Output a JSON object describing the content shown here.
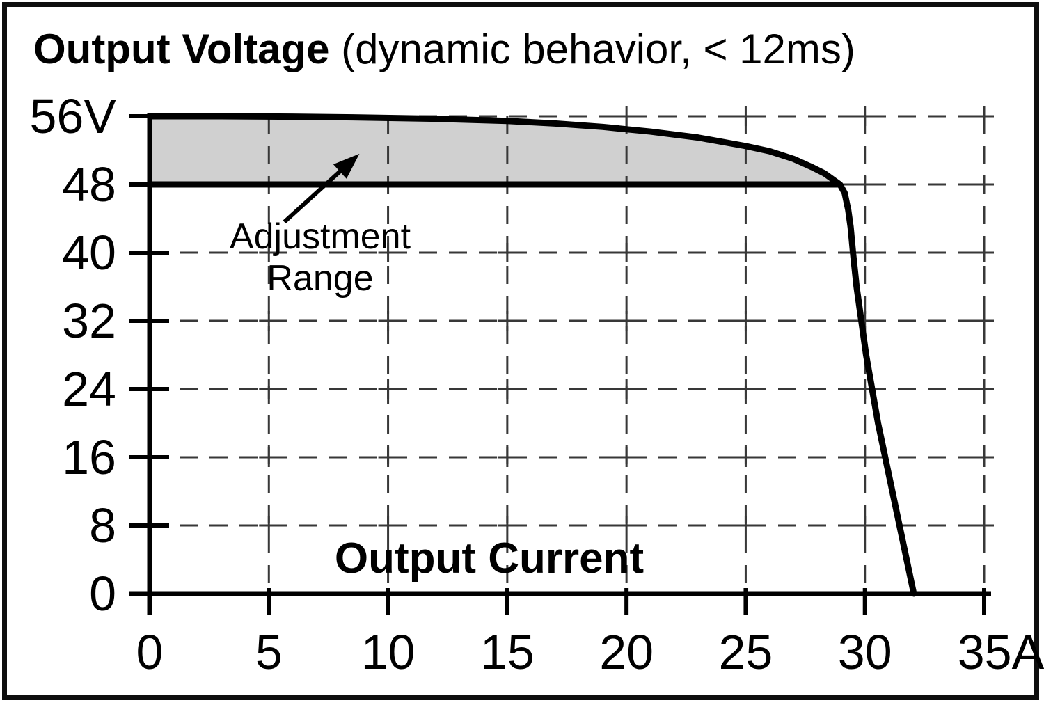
{
  "figure": {
    "title": {
      "bold": "Output Voltage",
      "regular": " (dynamic behavior, < 12ms)"
    }
  },
  "chart_data": {
    "type": "line",
    "title": "Output Voltage (dynamic behavior, < 12ms)",
    "xlabel": "Output Current",
    "ylabel": "Output Voltage",
    "x_unit": "A",
    "y_unit": "V",
    "xlim": [
      0,
      35
    ],
    "ylim": [
      0,
      56
    ],
    "x_ticks": [
      0,
      5,
      10,
      15,
      20,
      25,
      30,
      35
    ],
    "x_tick_labels": [
      "0",
      "5",
      "10",
      "15",
      "20",
      "25",
      "30",
      "35A"
    ],
    "y_ticks": [
      0,
      8,
      16,
      24,
      32,
      40,
      48,
      56
    ],
    "y_tick_labels": [
      "0",
      "8",
      "16",
      "24",
      "32",
      "40",
      "48",
      "56V"
    ],
    "grid": {
      "style": "dashed",
      "x_step": 5,
      "y_step": 8,
      "crosses_at_intersections": true
    },
    "legend": "none",
    "series": [
      {
        "name": "output-characteristic-curve",
        "points": [
          [
            0,
            56
          ],
          [
            3,
            56
          ],
          [
            6,
            55.95
          ],
          [
            9,
            55.85
          ],
          [
            12,
            55.7
          ],
          [
            15,
            55.45
          ],
          [
            17,
            55.15
          ],
          [
            19,
            54.75
          ],
          [
            21,
            54.2
          ],
          [
            23,
            53.5
          ],
          [
            25,
            52.5
          ],
          [
            26,
            51.9
          ],
          [
            27,
            51.0
          ],
          [
            27.8,
            50.0
          ],
          [
            28.3,
            49.3
          ],
          [
            28.7,
            48.5
          ],
          [
            28.95,
            48.0
          ],
          [
            29.15,
            47
          ],
          [
            29.3,
            45
          ],
          [
            29.4,
            43
          ],
          [
            29.5,
            40
          ],
          [
            29.65,
            36
          ],
          [
            29.85,
            32
          ],
          [
            30.05,
            28
          ],
          [
            30.3,
            24
          ],
          [
            30.55,
            20
          ],
          [
            30.85,
            16
          ],
          [
            31.15,
            12
          ],
          [
            31.45,
            8
          ],
          [
            31.75,
            4
          ],
          [
            32.05,
            0
          ]
        ]
      },
      {
        "name": "adjustment-lower-limit-48v",
        "points": [
          [
            0,
            48
          ],
          [
            28.95,
            48
          ]
        ]
      }
    ],
    "shaded_region": {
      "label": "Adjustment Range",
      "upper_bound": "output-characteristic-curve",
      "lower_bound_V": 48,
      "x_range": [
        0,
        28.95
      ]
    },
    "annotation": {
      "lines": [
        "Adjustment",
        "Range"
      ],
      "arrow_from": [
        5.65,
        43.6
      ],
      "arrow_to": [
        8.8,
        51.6
      ]
    },
    "colors": {
      "line": "#000000",
      "grid": "#383838",
      "fill": "#d0d0d0",
      "text": "#000000",
      "background": "#ffffff",
      "border": "#0e0e0e"
    }
  }
}
